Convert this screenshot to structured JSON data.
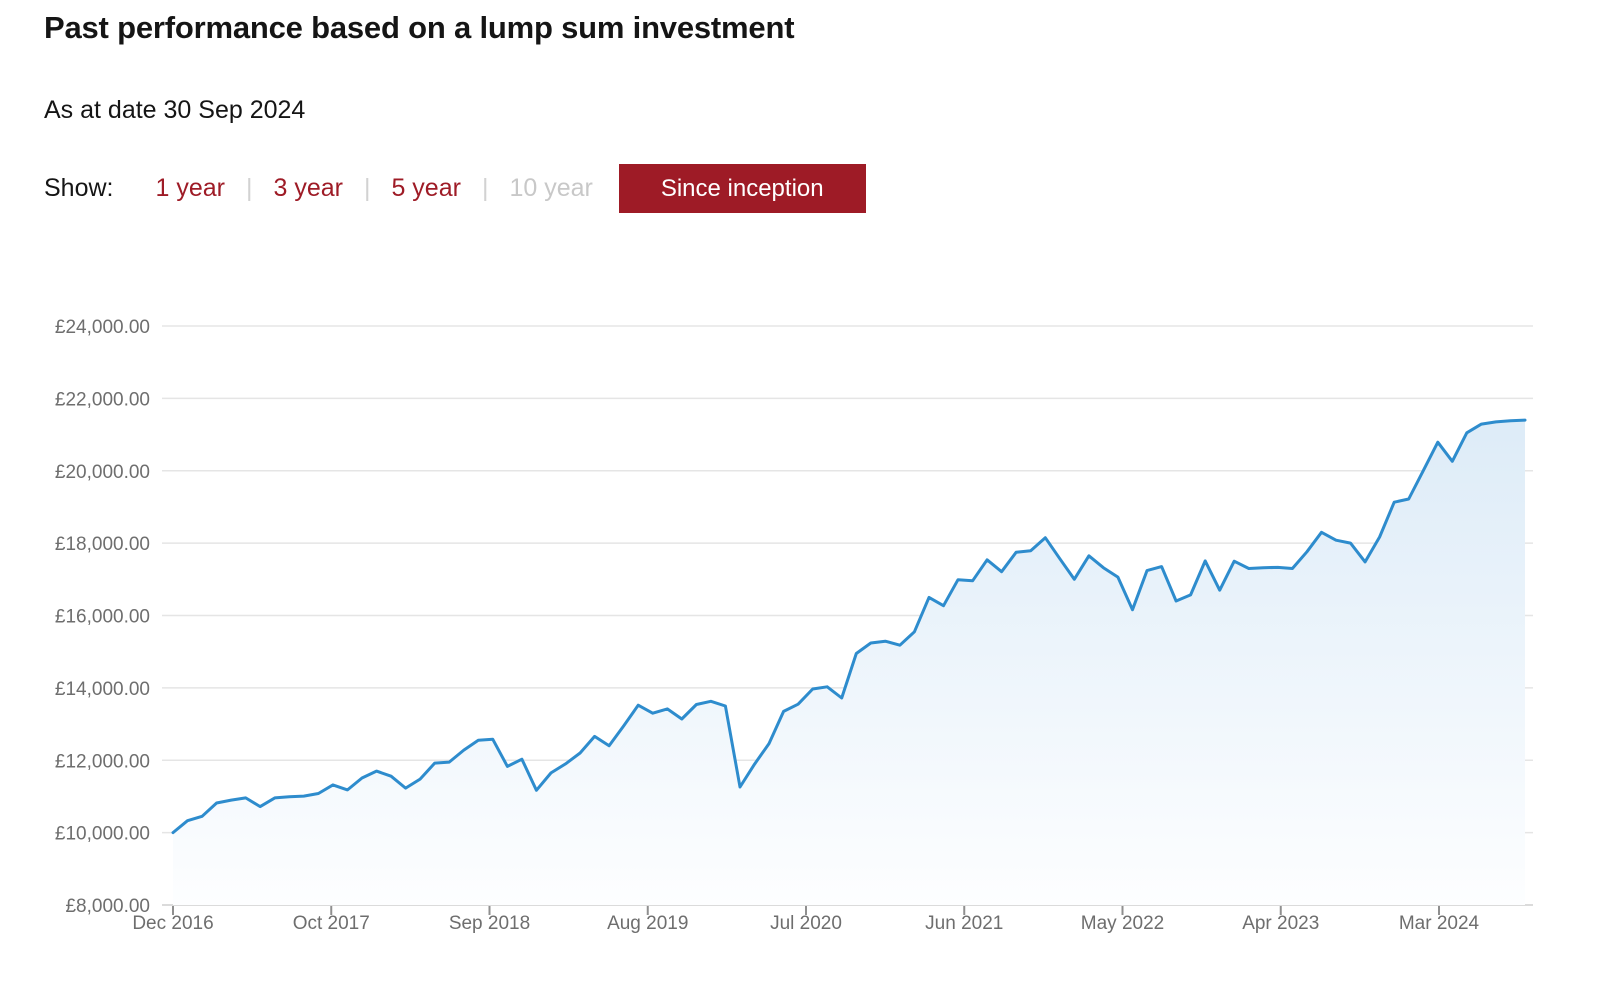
{
  "header": {
    "title": "Past performance based on a lump sum investment",
    "as_at": "As at date 30 Sep 2024"
  },
  "controls": {
    "show_label": "Show:",
    "separator": "|",
    "options": [
      {
        "label": "1 year",
        "state": "link"
      },
      {
        "label": "3 year",
        "state": "link"
      },
      {
        "label": "5 year",
        "state": "link"
      },
      {
        "label": "10 year",
        "state": "disabled"
      },
      {
        "label": "Since inception",
        "state": "selected"
      }
    ]
  },
  "colors": {
    "page_bg": "#ffffff",
    "text": "#151515",
    "accent_red": "#9e1b26",
    "selected_text": "#ffffff",
    "disabled_text": "#c8c8c8",
    "separator": "#d2d2d2",
    "axis_text": "#6e6e6e",
    "gridline": "#e5e5e5",
    "axis_line": "#cfcfcf",
    "tick": "#8f8f8f",
    "line": "#2e8ccd",
    "area_fill_top": "#d7e8f6",
    "area_fill_bottom": "#fdfeff"
  },
  "chart_data": {
    "type": "area",
    "title": "Past performance based on a lump sum investment",
    "as_at_date": "30 Sep 2024",
    "grid": "horizontal",
    "legend": "none",
    "ylim": [
      8000,
      24000
    ],
    "y_ticks": [
      {
        "value": 8000,
        "label": "£8,000.00"
      },
      {
        "value": 10000,
        "label": "£10,000.00"
      },
      {
        "value": 12000,
        "label": "£12,000.00"
      },
      {
        "value": 14000,
        "label": "£14,000.00"
      },
      {
        "value": 16000,
        "label": "£16,000.00"
      },
      {
        "value": 18000,
        "label": "£18,000.00"
      },
      {
        "value": 20000,
        "label": "£20,000.00"
      },
      {
        "value": 22000,
        "label": "£22,000.00"
      },
      {
        "value": 24000,
        "label": "£24,000.00"
      }
    ],
    "x_tick_labels": [
      "Dec 2016",
      "Oct 2017",
      "Sep 2018",
      "Aug 2019",
      "Jul 2020",
      "Jun 2021",
      "May 2022",
      "Apr 2023",
      "Mar 2024"
    ],
    "x_range": {
      "start": "Dec 2016",
      "end": "Sep 2024",
      "frequency": "monthly"
    },
    "series": [
      {
        "name": "lump_sum_value_gbp",
        "values": [
          10000,
          10330,
          10450,
          10820,
          10900,
          10960,
          10720,
          10960,
          10990,
          11010,
          11080,
          11320,
          11180,
          11510,
          11700,
          11560,
          11230,
          11480,
          11920,
          11950,
          12280,
          12550,
          12580,
          11830,
          12030,
          11170,
          11650,
          11900,
          12200,
          12660,
          12400,
          12950,
          13520,
          13300,
          13420,
          13140,
          13540,
          13630,
          13500,
          11260,
          11890,
          12460,
          13350,
          13550,
          13970,
          14030,
          13720,
          14950,
          15240,
          15290,
          15180,
          15550,
          16500,
          16270,
          16990,
          16960,
          17540,
          17210,
          17750,
          17790,
          18150,
          17570,
          17000,
          17650,
          17320,
          17060,
          16160,
          17240,
          17350,
          16400,
          16570,
          17510,
          16700,
          17500,
          17300,
          17320,
          17330,
          17300,
          17760,
          18300,
          18080,
          18000,
          17480,
          18170,
          19130,
          19220,
          20000,
          20790,
          20260,
          21050,
          21290,
          21350,
          21380,
          21400
        ]
      }
    ]
  }
}
